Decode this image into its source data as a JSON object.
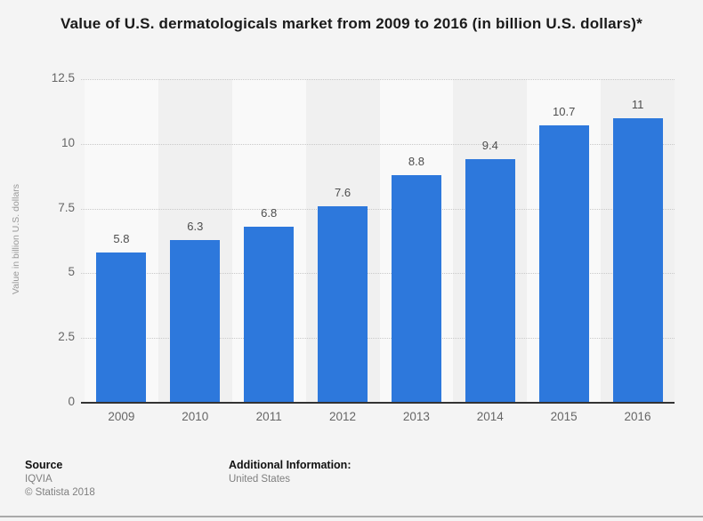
{
  "title": "Value of U.S. dermatologicals market from 2009 to 2016 (in billion U.S. dollars)*",
  "chart_data": {
    "type": "bar",
    "categories": [
      "2009",
      "2010",
      "2011",
      "2012",
      "2013",
      "2014",
      "2015",
      "2016"
    ],
    "values": [
      5.8,
      6.3,
      6.8,
      7.6,
      8.8,
      9.4,
      10.7,
      11
    ],
    "value_labels": [
      "5.8",
      "6.3",
      "6.8",
      "7.6",
      "8.8",
      "9.4",
      "10.7",
      "11"
    ],
    "title": "Value of U.S. dermatologicals market from 2009 to 2016 (in billion U.S. dollars)*",
    "xlabel": "",
    "ylabel": "Value in billion U.S. dollars",
    "ylim": [
      0,
      12.5
    ],
    "yticks": [
      0,
      2.5,
      5,
      7.5,
      10,
      12.5
    ],
    "ytick_labels": [
      "0",
      "2.5",
      "5",
      "7.5",
      "10",
      "12.5"
    ],
    "grid": true,
    "legend": "none",
    "bar_color": "#2d78dc"
  },
  "footer": {
    "source_label": "Source",
    "source_value": "IQVIA",
    "copyright": "© Statista 2018",
    "additional_label": "Additional Information:",
    "additional_value": "United States"
  },
  "colors": {
    "background": "#f4f4f4",
    "bar": "#2d78dc",
    "band_light": "#f9f9f9",
    "band_dark": "#f0f0f0",
    "gridline": "#c9c9c9",
    "baseline": "#333333",
    "title_text": "#1a1a1a",
    "tick_text": "#666666",
    "data_label_text": "#4d4d4d",
    "axis_title_text": "#999999",
    "footer_muted_text": "#7f7f7f"
  }
}
